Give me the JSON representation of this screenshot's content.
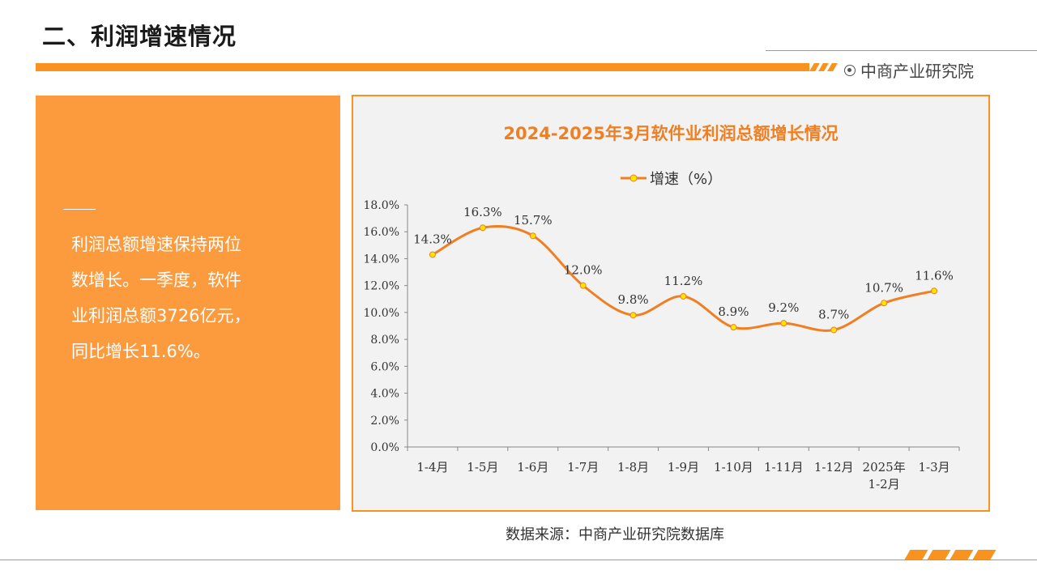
{
  "header": {
    "title": "二、利润增速情况",
    "brand": "中商产业研究院"
  },
  "summary": {
    "lines": [
      "利润总额增速保持两位",
      "数增长。一季度，软件",
      "业利润总额3726亿元，",
      "同比增长11.6%。"
    ]
  },
  "source": "数据来源：中商产业研究院数据库",
  "colors": {
    "accent": "#f7931e",
    "panel": "#fc9a3e",
    "line": "#f07f22",
    "marker": "#ffe600"
  },
  "chart_data": {
    "type": "line",
    "title": "2024-2025年3月软件业利润总额增长情况",
    "categories": [
      "1-4月",
      "1-5月",
      "1-6月",
      "1-7月",
      "1-8月",
      "1-9月",
      "1-10月",
      "1-11月",
      "1-12月",
      "2025年\n1-2月",
      "1-3月"
    ],
    "series": [
      {
        "name": "增速（%）",
        "values": [
          14.3,
          16.3,
          15.7,
          12.0,
          9.8,
          11.2,
          8.9,
          9.2,
          8.7,
          10.7,
          11.6
        ]
      }
    ],
    "value_labels": [
      "14.3%",
      "16.3%",
      "15.7%",
      "12.0%",
      "9.8%",
      "11.2%",
      "8.9%",
      "9.2%",
      "8.7%",
      "10.7%",
      "11.6%"
    ],
    "y_ticks": [
      "0.0%",
      "2.0%",
      "4.0%",
      "6.0%",
      "8.0%",
      "10.0%",
      "12.0%",
      "14.0%",
      "16.0%",
      "18.0%"
    ],
    "ylim": [
      0,
      18
    ],
    "smooth": true,
    "legend": "top",
    "grid": false
  }
}
